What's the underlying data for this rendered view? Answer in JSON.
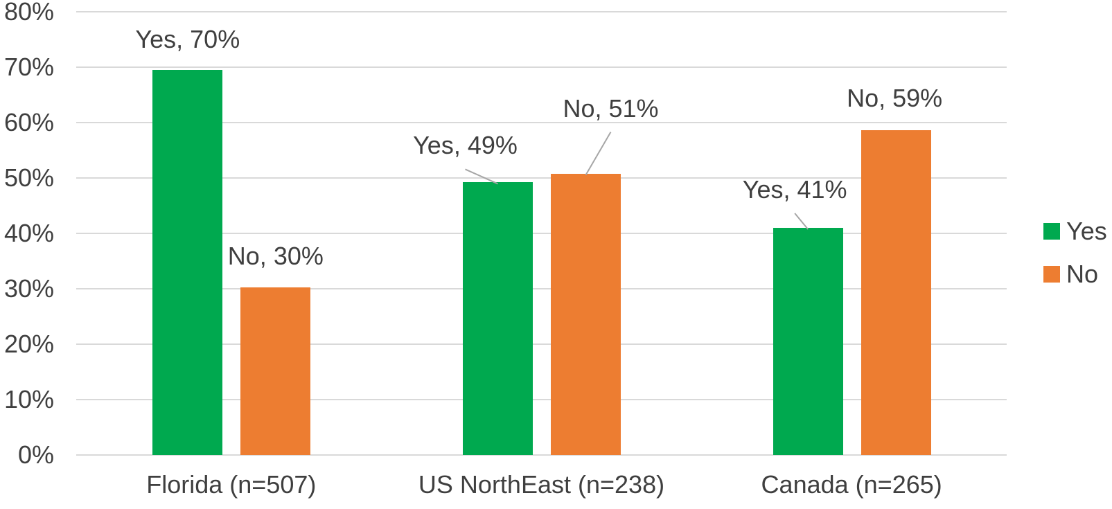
{
  "chart_data": {
    "type": "bar",
    "title": "",
    "categories": [
      "Florida (n=507)",
      "US NorthEast (n=238)",
      "Canada (n=265)"
    ],
    "series": [
      {
        "name": "Yes",
        "color": "#00a94f",
        "values": [
          70,
          49,
          41
        ],
        "points": [
          {
            "label": "Yes, 70%",
            "bar_pct": 69.5,
            "label_dx": 0,
            "label_dy": -24,
            "leader": false
          },
          {
            "label": "Yes, 49%",
            "bar_pct": 49.2,
            "label_dx": -47,
            "label_dy": -33,
            "leader": true
          },
          {
            "label": "Yes, 41%",
            "bar_pct": 41.0,
            "label_dx": -19,
            "label_dy": -35,
            "leader": true
          }
        ]
      },
      {
        "name": "No",
        "color": "#ed7d31",
        "values": [
          30,
          51,
          59
        ],
        "points": [
          {
            "label": "No, 30%",
            "bar_pct": 30.3,
            "label_dx": 0,
            "label_dy": -25,
            "leader": false
          },
          {
            "label": "No, 51%",
            "bar_pct": 50.8,
            "label_dx": 36,
            "label_dy": -74,
            "leader": true
          },
          {
            "label": "No, 59%",
            "bar_pct": 58.6,
            "label_dx": -2,
            "label_dy": -26,
            "leader": false
          }
        ]
      }
    ],
    "y_axis": {
      "min": 0,
      "max": 80,
      "step": 10,
      "tick_labels": [
        "0%",
        "10%",
        "20%",
        "30%",
        "40%",
        "50%",
        "60%",
        "70%",
        "80%"
      ],
      "grid": true
    },
    "x_axis": {
      "tick_labels": [
        "Florida (n=507)",
        "US NorthEast (n=238)",
        "Canada (n=265)"
      ]
    },
    "legend": {
      "position": "right",
      "items": [
        {
          "label": "Yes",
          "color": "#00a94f"
        },
        {
          "label": "No",
          "color": "#ed7d31"
        }
      ]
    },
    "styles": {
      "grid_color": "#d9d9d9",
      "text_color": "#3f3f3f",
      "leader_line_color": "#a6a6a6",
      "background": "#ffffff"
    }
  }
}
